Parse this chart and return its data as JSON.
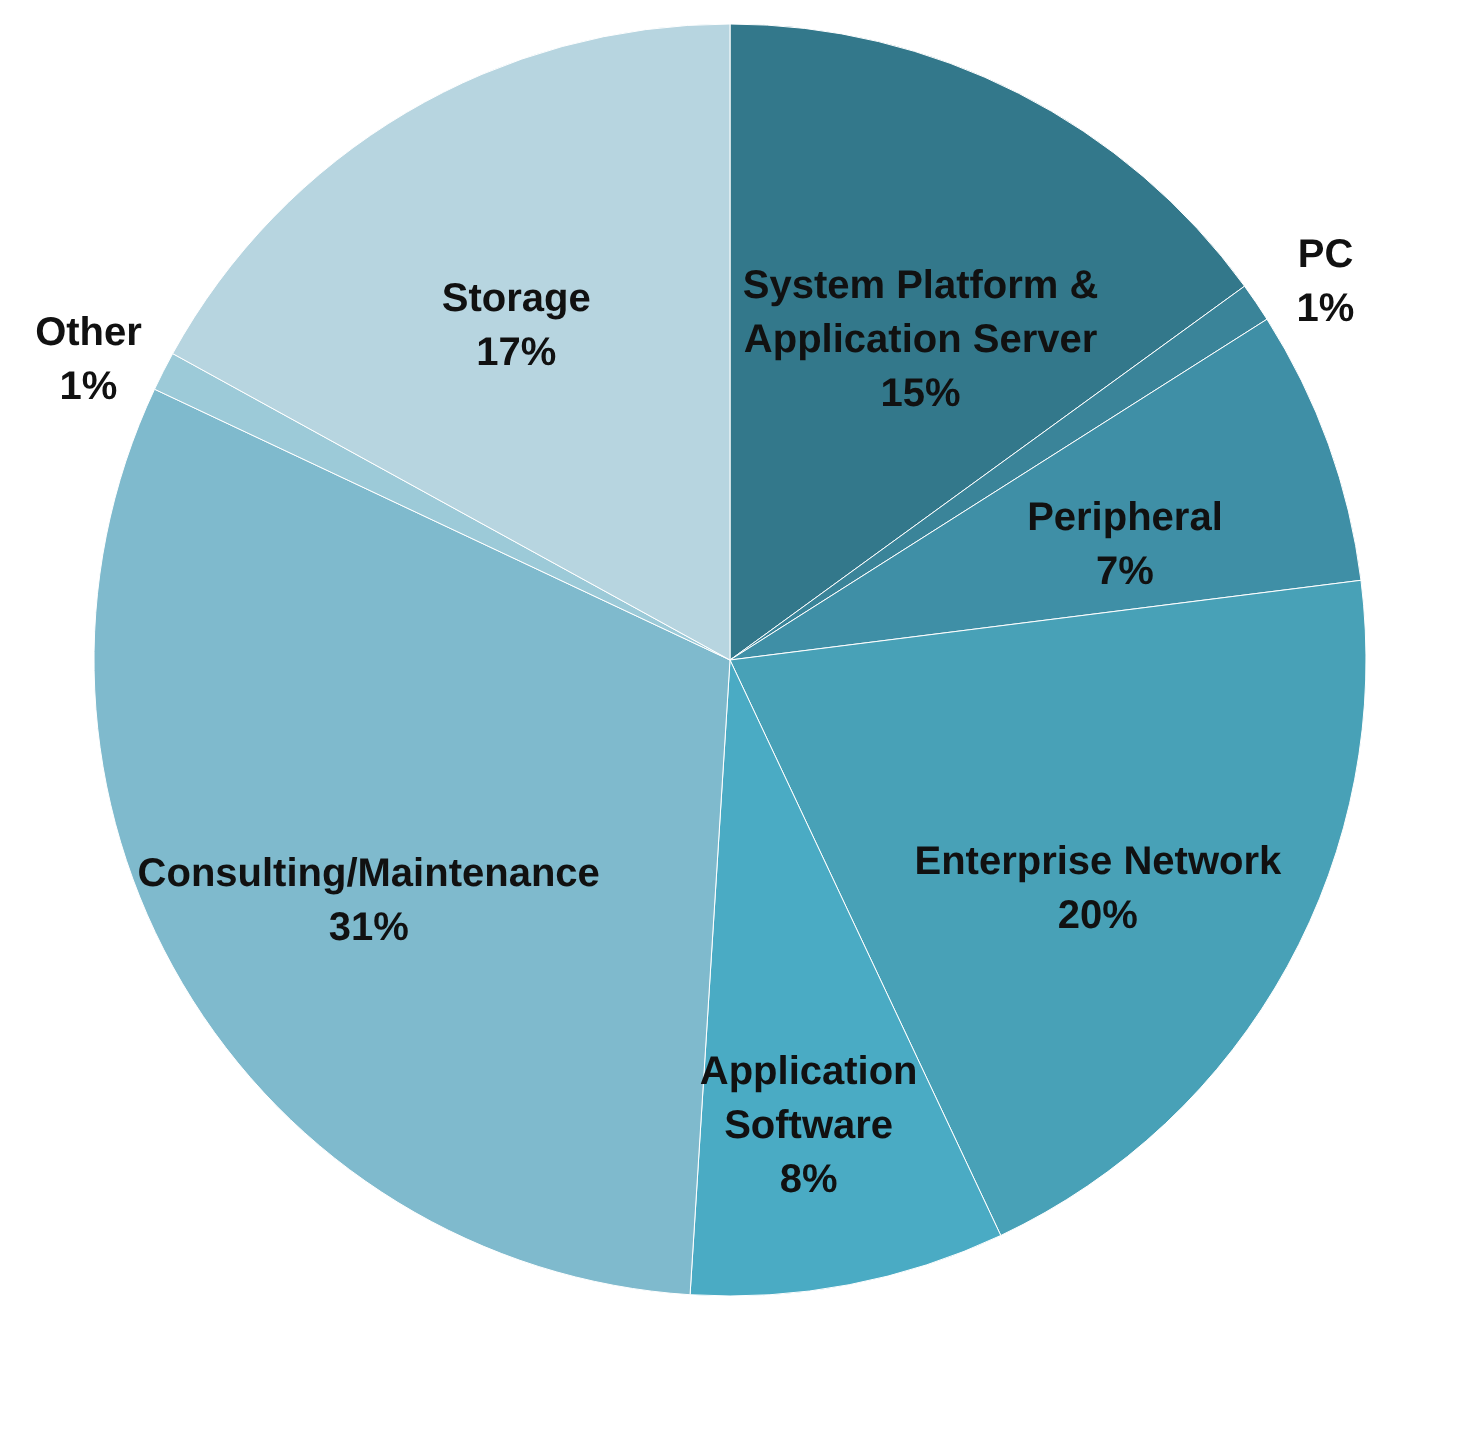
{
  "chart_data": {
    "type": "pie",
    "categories": [
      "System Platform & Application Server",
      "PC",
      "Peripheral",
      "Enterprise Network",
      "Application Software",
      "Consulting/Maintenance",
      "Other",
      "Storage"
    ],
    "values": [
      15,
      1,
      7,
      20,
      8,
      31,
      1,
      17
    ],
    "colors": [
      "#33788b",
      "#3a8499",
      "#3f8fa6",
      "#48a1b7",
      "#4aabc4",
      "#7fbacd",
      "#9ccad8",
      "#b7d5e0"
    ],
    "value_labels": [
      "15%",
      "1%",
      "7%",
      "20%",
      "8%",
      "31%",
      "1%",
      "17%"
    ]
  }
}
